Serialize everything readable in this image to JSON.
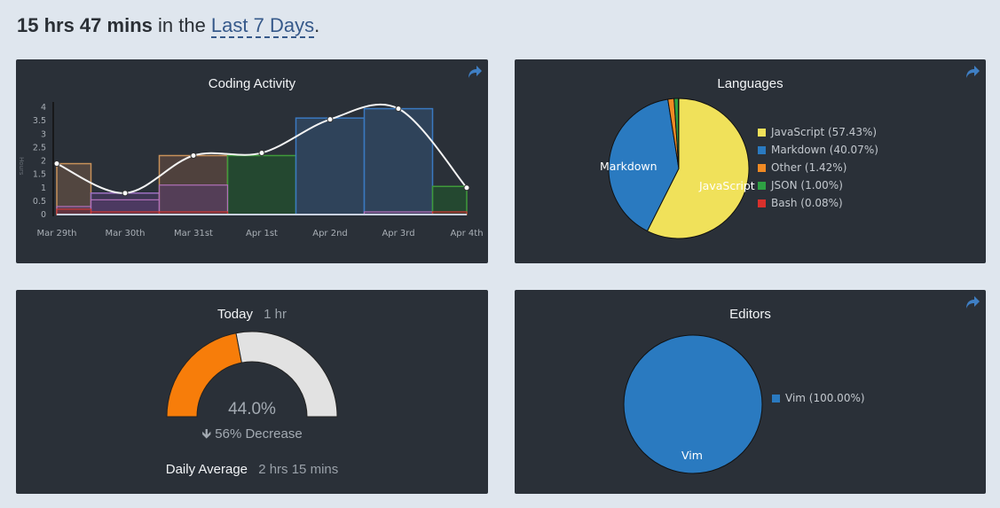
{
  "header": {
    "total_time": "15 hrs 47 mins",
    "connector": " in the ",
    "range_label": "Last 7 Days",
    "period": "."
  },
  "coding_activity": {
    "title": "Coding Activity",
    "ylabel": "Hours",
    "yticks": [
      "4",
      "3.5",
      "3",
      "2.5",
      "2",
      "1.5",
      "1",
      "0.5",
      "0"
    ],
    "xticks": [
      "Mar 29th",
      "Mar 30th",
      "Mar 31st",
      "Apr 1st",
      "Apr 2nd",
      "Apr 3rd",
      "Apr 4th"
    ]
  },
  "chart_data": [
    {
      "type": "bar",
      "title": "Coding Activity",
      "ylabel": "Hours",
      "categories": [
        "Mar 29th",
        "Mar 30th",
        "Mar 31st",
        "Apr 1st",
        "Apr 2nd",
        "Apr 3rd",
        "Apr 4th"
      ],
      "ylim": [
        0,
        4.3
      ],
      "series": [
        {
          "name": "JavaScript",
          "values": [
            1.9,
            0.8,
            2.2,
            2.2,
            3.6,
            3.95,
            1.05
          ]
        },
        {
          "name": "Markdown",
          "values": [
            0.3,
            0.55,
            1.1,
            0.0,
            0.0,
            0.1,
            0.0
          ]
        },
        {
          "name": "Other",
          "values": [
            0.2,
            0.1,
            0.1,
            0.0,
            0.0,
            0.0,
            0.1
          ]
        }
      ],
      "total_line": [
        1.9,
        0.8,
        2.2,
        2.3,
        3.55,
        3.95,
        1.0
      ]
    },
    {
      "type": "pie",
      "title": "Languages",
      "labels": [
        "JavaScript",
        "Markdown",
        "Other",
        "JSON",
        "Bash"
      ],
      "values": [
        57.43,
        40.07,
        1.42,
        1.0,
        0.08
      ]
    },
    {
      "type": "pie",
      "title": "Editors",
      "labels": [
        "Vim"
      ],
      "values": [
        100.0
      ]
    }
  ],
  "languages": {
    "title": "Languages",
    "slice_labels": {
      "javascript": "JavaScript",
      "markdown": "Markdown"
    },
    "legend": [
      {
        "label": "JavaScript (57.43%)",
        "color": "#f0e15a"
      },
      {
        "label": "Markdown (40.07%)",
        "color": "#2a7ac0"
      },
      {
        "label": "Other (1.42%)",
        "color": "#f08a24"
      },
      {
        "label": "JSON (1.00%)",
        "color": "#2ea043"
      },
      {
        "label": "Bash (0.08%)",
        "color": "#d9302c"
      }
    ]
  },
  "today": {
    "title": "Today",
    "time": "1 hr",
    "percent": "44.0%",
    "percent_value": 44.0,
    "change": "56% Decrease",
    "avg_label": "Daily Average",
    "avg_value": "2 hrs 15 mins",
    "colors": {
      "fill": "#f77d0a",
      "rest": "#e2e2e2"
    }
  },
  "editors": {
    "title": "Editors",
    "slice_label": "Vim",
    "legend": [
      {
        "label": "Vim (100.00%)",
        "color": "#2a7ac0"
      }
    ]
  },
  "icons": {
    "share": "share-icon",
    "arrow": "arrow-down-icon"
  }
}
